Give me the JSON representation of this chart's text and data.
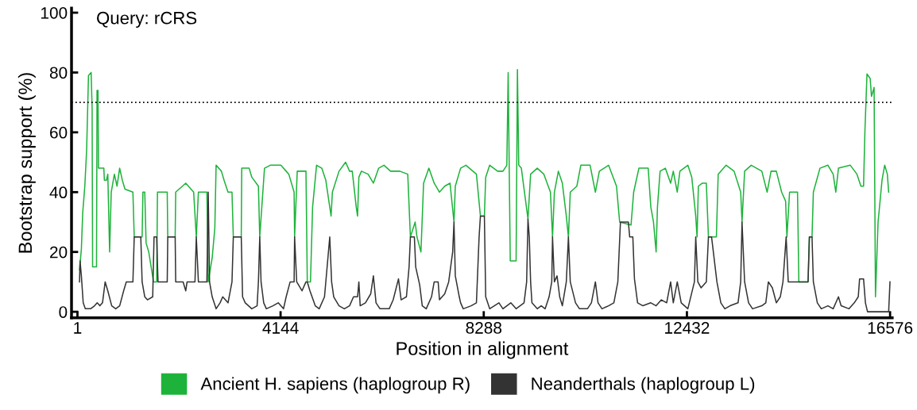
{
  "chart_data": {
    "type": "line",
    "xlabel": "Position in alignment",
    "ylabel": "Bootstrap support (%)",
    "annotations": [
      "Query: rCRS"
    ],
    "xlim": [
      -120,
      16620
    ],
    "xticks": [
      1,
      4144,
      8288,
      12432,
      16576
    ],
    "ylim": [
      -2,
      101.5
    ],
    "yticks": [
      0,
      20,
      40,
      60,
      80,
      100
    ],
    "grid": false,
    "legend": "bottom",
    "marker": "none",
    "line_style": "solid",
    "ref_lines": [
      {
        "axis": "y",
        "value": 70,
        "label": null,
        "color": "#000000",
        "line_style": "dotted"
      }
    ],
    "series": [
      {
        "name": "Ancient H. sapiens (haplogroup R)",
        "color": "#1db33a",
        "x": [
          43,
          81,
          108,
          151,
          188,
          226,
          280,
          300,
          310,
          390,
          400,
          420,
          430,
          458,
          539,
          550,
          593,
          620,
          657,
          690,
          754,
          808,
          862,
          916,
          970,
          1132,
          1159,
          1320,
          1336,
          1374,
          1401,
          1455,
          1552,
          1617,
          1633,
          1832,
          1843,
          1994,
          2005,
          2210,
          2371,
          2425,
          2468,
          2641,
          2668,
          2749,
          2803,
          2829,
          2937,
          2991,
          3072,
          3153,
          3180,
          3342,
          3352,
          3503,
          3557,
          3692,
          3719,
          3816,
          3934,
          4150,
          4258,
          4312,
          4420,
          4430,
          4484,
          4662,
          4689,
          4754,
          4797,
          4878,
          4985,
          5066,
          5174,
          5201,
          5336,
          5471,
          5551,
          5606,
          5687,
          5714,
          5741,
          5794,
          5929,
          6037,
          6145,
          6253,
          6387,
          6576,
          6738,
          6792,
          6889,
          6926,
          7007,
          7061,
          7169,
          7277,
          7385,
          7492,
          7600,
          7681,
          7708,
          7816,
          7924,
          8139,
          8220,
          8301,
          8328,
          8409,
          8571,
          8679,
          8759,
          8786,
          8829,
          8948,
          8975,
          9002,
          9055,
          9190,
          9244,
          9379,
          9514,
          9648,
          9691,
          9729,
          9810,
          9891,
          9972,
          10015,
          10053,
          10187,
          10268,
          10457,
          10565,
          10646,
          10834,
          10996,
          11060,
          11292,
          11346,
          11453,
          11642,
          11696,
          11750,
          11804,
          11831,
          11885,
          11992,
          12100,
          12154,
          12235,
          12289,
          12451,
          12531,
          12612,
          12639,
          12666,
          12747,
          12828,
          12871,
          12935,
          13033,
          13070,
          13232,
          13394,
          13529,
          13556,
          13609,
          13744,
          13960,
          14068,
          14148,
          14256,
          14364,
          14445,
          14472,
          14526,
          14688,
          14715,
          14903,
          14930,
          14984,
          15011,
          15146,
          15308,
          15415,
          15469,
          15523,
          15765,
          15900,
          15981,
          16035,
          16062,
          16105,
          16170,
          16197,
          16250,
          16278,
          16331,
          16412,
          16466,
          16520,
          16547
        ],
        "values": [
          14,
          21,
          33,
          42,
          54,
          79,
          80,
          68,
          15,
          15,
          74,
          74,
          48,
          48,
          48,
          44,
          44,
          46,
          20,
          40,
          46,
          42,
          48,
          44,
          41,
          40,
          25,
          25,
          40,
          40,
          23,
          20,
          10,
          10,
          40,
          40,
          25,
          25,
          40,
          43,
          40,
          25,
          40,
          40,
          10,
          18,
          28,
          49,
          47,
          44,
          40,
          40,
          25,
          25,
          48,
          48,
          45,
          42,
          25,
          48,
          49,
          49,
          47,
          46,
          40,
          25,
          47,
          47,
          10,
          10,
          35,
          49,
          48,
          44,
          32,
          40,
          47,
          50,
          47,
          47,
          35,
          32,
          45,
          47,
          46,
          43,
          48,
          49,
          47,
          47,
          46,
          25,
          30,
          25,
          20,
          43,
          48,
          43,
          40,
          42,
          43,
          30,
          42,
          48,
          49,
          46,
          32,
          32,
          45,
          49,
          47,
          47,
          49,
          80,
          17,
          17,
          81,
          49,
          48,
          31,
          46,
          48,
          46,
          40,
          25,
          40,
          47,
          43,
          32,
          25,
          40,
          42,
          49,
          49,
          40,
          47,
          49,
          42,
          30,
          29,
          40,
          48,
          48,
          35,
          30,
          20,
          35,
          47,
          48,
          43,
          47,
          40,
          47,
          49,
          45,
          32,
          25,
          42,
          43,
          43,
          25,
          25,
          25,
          46,
          49,
          47,
          40,
          30,
          47,
          49,
          47,
          40,
          47,
          47,
          40,
          37,
          25,
          40,
          40,
          10,
          10,
          25,
          25,
          40,
          48,
          49,
          46,
          40,
          48,
          49,
          46,
          42,
          42,
          60,
          79.5,
          78,
          72,
          75,
          5,
          30,
          44,
          49,
          46,
          40
        ]
      },
      {
        "name": "Neanderthals (haplogroup L)",
        "color": "#333333",
        "x": [
          43,
          54,
          81,
          118,
          161,
          269,
          350,
          404,
          458,
          512,
          566,
          620,
          700,
          781,
          862,
          943,
          997,
          1132,
          1159,
          1293,
          1320,
          1374,
          1428,
          1536,
          1563,
          1617,
          1644,
          1832,
          1843,
          1994,
          2005,
          2156,
          2210,
          2237,
          2398,
          2425,
          2468,
          2641,
          2668,
          2695,
          2749,
          2829,
          2910,
          2964,
          3072,
          3153,
          3180,
          3342,
          3369,
          3423,
          3557,
          3665,
          3692,
          3719,
          3746,
          3800,
          3854,
          3988,
          4096,
          4204,
          4258,
          4339,
          4420,
          4430,
          4473,
          4581,
          4662,
          4689,
          4743,
          4851,
          4932,
          5040,
          5147,
          5185,
          5228,
          5336,
          5444,
          5551,
          5632,
          5714,
          5741,
          5768,
          5875,
          5983,
          6037,
          6091,
          6172,
          6360,
          6441,
          6549,
          6603,
          6711,
          6765,
          6792,
          6873,
          6900,
          6981,
          7034,
          7115,
          7223,
          7277,
          7358,
          7385,
          7492,
          7573,
          7654,
          7681,
          7708,
          7789,
          7816,
          7870,
          8031,
          8139,
          8193,
          8220,
          8301,
          8328,
          8409,
          8598,
          8679,
          8840,
          8948,
          9110,
          9163,
          9190,
          9217,
          9244,
          9271,
          9379,
          9460,
          9541,
          9621,
          9675,
          9691,
          9729,
          9783,
          9837,
          9891,
          9972,
          10015,
          10053,
          10160,
          10241,
          10403,
          10484,
          10565,
          10619,
          10700,
          10834,
          10942,
          11023,
          11076,
          11211,
          11238,
          11265,
          11329,
          11362,
          11426,
          11534,
          11696,
          11804,
          11911,
          12019,
          12100,
          12154,
          12235,
          12316,
          12451,
          12585,
          12612,
          12655,
          12720,
          12828,
          12871,
          12935,
          13044,
          13124,
          13205,
          13313,
          13475,
          13529,
          13556,
          13609,
          13690,
          13771,
          13960,
          14041,
          14094,
          14175,
          14256,
          14337,
          14391,
          14456,
          14499,
          14715,
          14903,
          14930,
          14984,
          15011,
          15092,
          15173,
          15308,
          15415,
          15523,
          15577,
          15739,
          15846,
          15927,
          15954,
          16035,
          16073,
          16116,
          16547,
          16574
        ],
        "values": [
          10,
          17,
          12,
          3,
          1,
          1,
          2,
          3,
          2,
          3,
          10,
          7,
          2,
          1,
          2,
          7,
          10,
          10,
          25,
          25,
          10,
          5,
          4,
          5,
          25,
          25,
          10,
          10,
          25,
          25,
          10,
          10,
          7,
          10,
          10,
          25,
          10,
          10,
          40,
          10,
          5,
          1,
          3,
          5,
          3,
          10,
          25,
          25,
          5,
          3,
          1,
          2,
          10,
          25,
          10,
          3,
          1,
          2,
          3,
          1,
          5,
          10,
          10,
          25,
          10,
          7,
          10,
          10,
          7,
          2,
          1,
          5,
          25,
          10,
          5,
          2,
          1,
          2,
          5,
          5,
          10,
          2,
          3,
          6,
          12,
          3,
          1,
          1,
          4,
          11,
          4,
          5,
          15,
          25,
          25,
          15,
          9,
          2,
          1,
          5,
          10,
          10,
          4,
          6,
          10,
          20,
          30,
          12,
          5,
          3,
          1,
          2,
          3,
          25,
          32,
          32,
          5,
          1,
          3,
          1,
          3,
          1,
          3,
          10,
          31,
          25,
          10,
          3,
          1,
          2,
          1,
          5,
          10,
          25,
          10,
          12,
          5,
          2,
          10,
          25,
          10,
          3,
          1,
          1,
          3,
          10,
          3,
          1,
          2,
          3,
          10,
          30,
          30,
          30,
          25,
          25,
          11,
          3,
          2,
          3,
          2,
          4,
          3,
          10,
          3,
          10,
          3,
          1,
          10,
          25,
          10,
          8,
          10,
          25,
          25,
          10,
          3,
          1,
          2,
          3,
          10,
          30,
          10,
          3,
          1,
          2,
          3,
          10,
          8,
          3,
          5,
          10,
          25,
          10,
          10,
          10,
          25,
          25,
          10,
          3,
          1,
          2,
          1,
          5,
          2,
          1,
          3,
          5,
          11,
          11,
          3,
          0,
          0,
          10
        ]
      }
    ]
  }
}
